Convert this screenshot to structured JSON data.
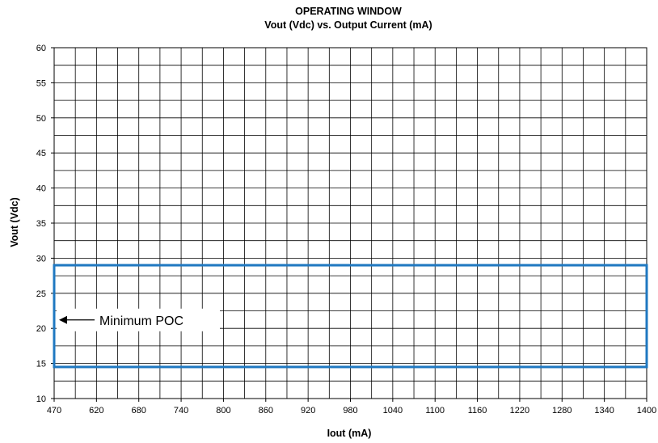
{
  "chart_data": {
    "type": "line",
    "title": "OPERATING WINDOW",
    "subtitle": "Vout (Vdc) vs. Output Current (mA)",
    "xlabel": "Iout (mA)",
    "ylabel": "Vout (Vdc)",
    "xlim": [
      470,
      1400
    ],
    "ylim": [
      10,
      60
    ],
    "x_tick_labels": [
      "470",
      "620",
      "680",
      "740",
      "800",
      "860",
      "920",
      "980",
      "1040",
      "1100",
      "1160",
      "1220",
      "1280",
      "1340",
      "1400"
    ],
    "y_tick_labels": [
      "10",
      "15",
      "20",
      "25",
      "30",
      "35",
      "40",
      "45",
      "50",
      "55",
      "60"
    ],
    "grid": true,
    "operating_window": {
      "x": [
        470,
        1400
      ],
      "y": [
        14.5,
        29
      ],
      "color": "#1f78c1"
    },
    "annotation": {
      "text": "Minimum POC",
      "x": 470,
      "y": 21.2
    }
  }
}
